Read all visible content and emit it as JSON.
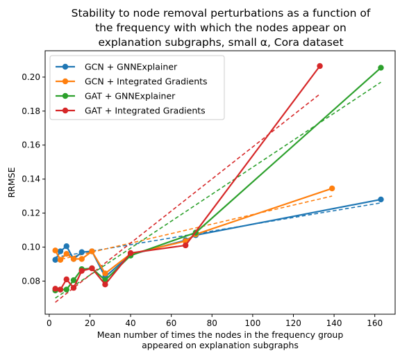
{
  "chart_data": {
    "type": "line",
    "title_lines": [
      "Stability to node removal perturbations as a function of",
      "the frequency with which the nodes appear on",
      "explanation subgraphs, small α, Cora dataset"
    ],
    "xlabel_lines": [
      "Mean number of times the nodes in the frequency group",
      "appeared on explanation subgraphs"
    ],
    "ylabel": "RRMSE",
    "xlim": [
      -2,
      170
    ],
    "ylim": [
      0.0605,
      0.2155
    ],
    "x_ticks": [
      0,
      20,
      40,
      60,
      80,
      100,
      120,
      140,
      160
    ],
    "y_ticks": [
      0.08,
      0.1,
      0.12,
      0.14,
      0.16,
      0.18,
      0.2
    ],
    "x_tick_labels": [
      "0",
      "20",
      "40",
      "60",
      "80",
      "100",
      "120",
      "140",
      "160"
    ],
    "y_tick_labels": [
      "0.08",
      "0.10",
      "0.12",
      "0.14",
      "0.16",
      "0.18",
      "0.20"
    ],
    "grid": false,
    "legend_position": "top-left",
    "series": [
      {
        "name": "GCN + GNNExplainer",
        "color": "#1f77b4",
        "points": [
          [
            3,
            0.0925
          ],
          [
            5.5,
            0.0975
          ],
          [
            8.5,
            0.1005
          ],
          [
            12,
            0.093
          ],
          [
            16,
            0.097
          ],
          [
            21,
            0.0975
          ],
          [
            27.5,
            0.0825
          ],
          [
            40,
            0.0955
          ],
          [
            67,
            0.104
          ],
          [
            72,
            0.107
          ],
          [
            163,
            0.128
          ]
        ],
        "trend": [
          [
            3,
            0.094
          ],
          [
            163,
            0.126
          ]
        ]
      },
      {
        "name": "GCN + Integrated Gradients",
        "color": "#ff7f0e",
        "points": [
          [
            3,
            0.098
          ],
          [
            5.5,
            0.0925
          ],
          [
            8.5,
            0.096
          ],
          [
            12,
            0.093
          ],
          [
            16,
            0.093
          ],
          [
            21,
            0.0975
          ],
          [
            27.5,
            0.0845
          ],
          [
            40,
            0.096
          ],
          [
            67,
            0.1035
          ],
          [
            72,
            0.1075
          ],
          [
            139,
            0.1345
          ]
        ],
        "trend": [
          [
            3,
            0.092
          ],
          [
            139,
            0.13
          ]
        ]
      },
      {
        "name": "GAT + GNNExplainer",
        "color": "#2ca02c",
        "points": [
          [
            3,
            0.0745
          ],
          [
            5.5,
            0.075
          ],
          [
            8.5,
            0.075
          ],
          [
            12,
            0.0805
          ],
          [
            16,
            0.087
          ],
          [
            21,
            0.0875
          ],
          [
            27.5,
            0.0805
          ],
          [
            40,
            0.095
          ],
          [
            72,
            0.1085
          ],
          [
            163,
            0.2055
          ]
        ],
        "trend": [
          [
            3,
            0.07
          ],
          [
            163,
            0.197
          ]
        ]
      },
      {
        "name": "GAT + Integrated Gradients",
        "color": "#d62728",
        "points": [
          [
            3,
            0.0755
          ],
          [
            5.5,
            0.075
          ],
          [
            8.5,
            0.081
          ],
          [
            12,
            0.076
          ],
          [
            16,
            0.086
          ],
          [
            21,
            0.0875
          ],
          [
            27.5,
            0.078
          ],
          [
            40,
            0.0965
          ],
          [
            67,
            0.101
          ],
          [
            133,
            0.2065
          ]
        ],
        "trend": [
          [
            3,
            0.0675
          ],
          [
            133,
            0.19
          ]
        ]
      }
    ]
  }
}
